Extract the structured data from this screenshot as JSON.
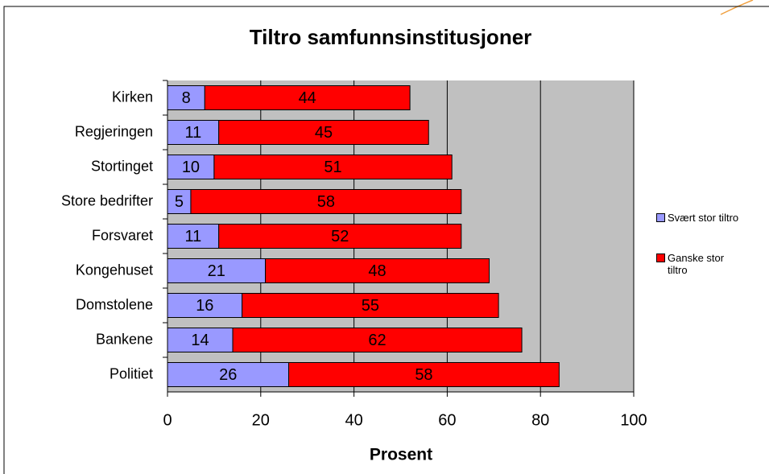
{
  "chart_data": {
    "type": "stacked-barh",
    "title": "Tiltro samfunnsinstitusjoner",
    "categories": [
      "Kirken",
      "Regjeringen",
      "Stortinget",
      "Store bedrifter",
      "Forsvaret",
      "Kongehuset",
      "Domstolene",
      "Bankene",
      "Politiet"
    ],
    "series": [
      {
        "name": "Svært stor tiltro",
        "color": "#9999ff",
        "values": [
          8,
          11,
          10,
          5,
          11,
          21,
          16,
          14,
          26
        ]
      },
      {
        "name": "Ganske stor tiltro",
        "color": "#ff0000",
        "values": [
          44,
          45,
          51,
          58,
          52,
          48,
          55,
          62,
          58
        ]
      }
    ],
    "xlabel": "Prosent",
    "xlim": [
      0,
      100
    ],
    "xticks": [
      0,
      20,
      40,
      60,
      80,
      100
    ],
    "grid": true,
    "legend": "right"
  }
}
